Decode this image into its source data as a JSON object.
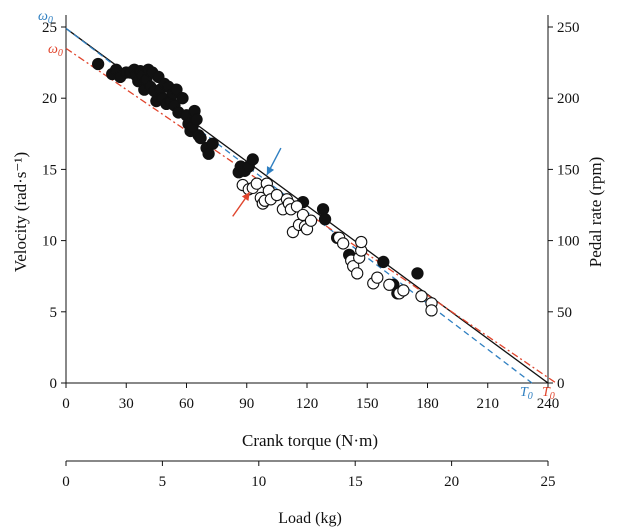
{
  "chart_data": {
    "type": "scatter",
    "xlabel": "Crank torque (N·m)",
    "ylabel": "Velocity (rad·s⁻¹)",
    "y2label": "Pedal rate (rpm)",
    "x2label": "Load (kg)",
    "xlim": [
      0,
      240
    ],
    "ylim": [
      0,
      25
    ],
    "y2lim": [
      0,
      250
    ],
    "x2lim": [
      0,
      25
    ],
    "xticks": [
      0,
      30,
      60,
      90,
      120,
      150,
      180,
      210,
      240
    ],
    "yticks": [
      0,
      5,
      10,
      15,
      20,
      25
    ],
    "y2ticks": [
      0,
      50,
      100,
      150,
      200,
      250
    ],
    "x2ticks": [
      0,
      5,
      10,
      15,
      20,
      25
    ],
    "grid": false,
    "legend": "none",
    "colors": {
      "black": "#111111",
      "blue": "#2f7fc1",
      "red": "#e0452d"
    },
    "annotations": {
      "omega_blue": "ω0",
      "omega_red": "ω0",
      "t0_blue": "T0",
      "t0_red": "T0"
    },
    "series": [
      {
        "marker": "filled-circle",
        "points": [
          [
            16,
            22.4
          ],
          [
            23,
            21.7
          ],
          [
            25,
            22.0
          ],
          [
            27,
            21.5
          ],
          [
            30,
            21.8
          ],
          [
            32,
            21.8
          ],
          [
            34,
            22.0
          ],
          [
            35,
            21.6
          ],
          [
            36,
            21.2
          ],
          [
            37,
            21.9
          ],
          [
            38,
            21.6
          ],
          [
            39,
            20.6
          ],
          [
            40,
            21.3
          ],
          [
            41,
            22.0
          ],
          [
            42,
            20.8
          ],
          [
            43,
            21.8
          ],
          [
            44,
            20.5
          ],
          [
            45,
            19.8
          ],
          [
            46,
            21.5
          ],
          [
            47,
            20.6
          ],
          [
            48,
            20.0
          ],
          [
            49,
            21.0
          ],
          [
            50,
            19.6
          ],
          [
            51,
            20.8
          ],
          [
            52,
            19.8
          ],
          [
            53,
            20.3
          ],
          [
            54,
            19.5
          ],
          [
            55,
            20.6
          ],
          [
            56,
            19.0
          ],
          [
            58,
            20.0
          ],
          [
            60,
            18.8
          ],
          [
            61,
            18.2
          ],
          [
            62,
            17.7
          ],
          [
            63,
            18.0
          ],
          [
            64,
            19.1
          ],
          [
            65,
            18.5
          ],
          [
            66,
            17.4
          ],
          [
            67,
            17.2
          ],
          [
            70,
            16.5
          ],
          [
            71,
            16.1
          ],
          [
            73,
            16.8
          ],
          [
            86,
            14.8
          ],
          [
            87,
            15.2
          ],
          [
            89,
            14.9
          ],
          [
            91,
            15.2
          ],
          [
            93,
            15.7
          ],
          [
            118,
            12.7
          ],
          [
            128,
            12.2
          ],
          [
            129,
            11.5
          ],
          [
            135,
            10.2
          ],
          [
            141,
            9.0
          ],
          [
            158,
            8.5
          ],
          [
            163,
            6.9
          ],
          [
            165,
            6.3
          ],
          [
            175,
            7.7
          ]
        ]
      },
      {
        "marker": "open-circle",
        "points": [
          [
            88,
            13.9
          ],
          [
            91,
            13.6
          ],
          [
            93,
            13.7
          ],
          [
            95,
            14.0
          ],
          [
            97,
            13.0
          ],
          [
            98,
            12.6
          ],
          [
            99,
            12.8
          ],
          [
            100,
            14.0
          ],
          [
            101,
            13.5
          ],
          [
            102,
            12.9
          ],
          [
            105,
            13.2
          ],
          [
            108,
            12.2
          ],
          [
            110,
            12.9
          ],
          [
            111,
            12.6
          ],
          [
            112,
            12.2
          ],
          [
            113,
            10.6
          ],
          [
            115,
            12.4
          ],
          [
            116,
            11.1
          ],
          [
            118,
            11.8
          ],
          [
            119,
            11.0
          ],
          [
            120,
            10.8
          ],
          [
            122,
            11.4
          ],
          [
            136,
            10.2
          ],
          [
            138,
            9.8
          ],
          [
            142,
            8.6
          ],
          [
            143,
            8.2
          ],
          [
            145,
            7.7
          ],
          [
            146,
            8.8
          ],
          [
            147,
            9.3
          ],
          [
            147,
            9.9
          ],
          [
            153,
            7.0
          ],
          [
            155,
            7.4
          ],
          [
            161,
            6.9
          ],
          [
            166,
            6.3
          ],
          [
            168,
            6.5
          ],
          [
            177,
            6.1
          ],
          [
            182,
            5.6
          ],
          [
            182,
            5.1
          ]
        ]
      }
    ],
    "fit_lines": [
      {
        "name": "black",
        "style": "solid",
        "x0": 0,
        "y0": 24.9,
        "x1": 240,
        "y1": 0
      },
      {
        "name": "blue",
        "style": "dashed",
        "x0": 0,
        "y0": 24.9,
        "x1": 232,
        "y1": 0
      },
      {
        "name": "red",
        "style": "dash-dot",
        "x0": 0,
        "y0": 23.5,
        "x1": 244,
        "y1": 0
      }
    ],
    "arrows": [
      {
        "color": "blue",
        "from": [
          107,
          16.5
        ],
        "to": [
          100,
          14.6
        ]
      },
      {
        "color": "red",
        "from": [
          83,
          11.7
        ],
        "to": [
          91.5,
          13.4
        ]
      }
    ]
  }
}
